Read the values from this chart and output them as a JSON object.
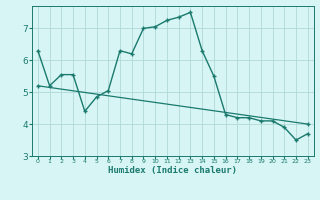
{
  "xlabel": "Humidex (Indice chaleur)",
  "background_color": "#d8f5f5",
  "line_color": "#1a7a6e",
  "grid_color": "#b0d8d8",
  "xlim": [
    -0.5,
    23.5
  ],
  "ylim": [
    3,
    7.7
  ],
  "yticks": [
    3,
    4,
    5,
    6,
    7
  ],
  "xticks": [
    0,
    1,
    2,
    3,
    4,
    5,
    6,
    7,
    8,
    9,
    10,
    11,
    12,
    13,
    14,
    15,
    16,
    17,
    18,
    19,
    20,
    21,
    22,
    23
  ],
  "line1_x": [
    0,
    1,
    2,
    3,
    4,
    5,
    6,
    7,
    8,
    9,
    10,
    11,
    12,
    13,
    14,
    15,
    16,
    17,
    18,
    19,
    20,
    21,
    22,
    23
  ],
  "line1_y": [
    6.3,
    5.2,
    5.55,
    5.55,
    4.4,
    4.85,
    5.05,
    6.3,
    6.2,
    7.0,
    7.05,
    7.25,
    7.35,
    7.5,
    6.3,
    5.5,
    4.3,
    4.2,
    4.2,
    4.1,
    4.1,
    3.9,
    3.5,
    3.7
  ],
  "line2_x": [
    0,
    23
  ],
  "line2_y": [
    5.2,
    4.0
  ]
}
